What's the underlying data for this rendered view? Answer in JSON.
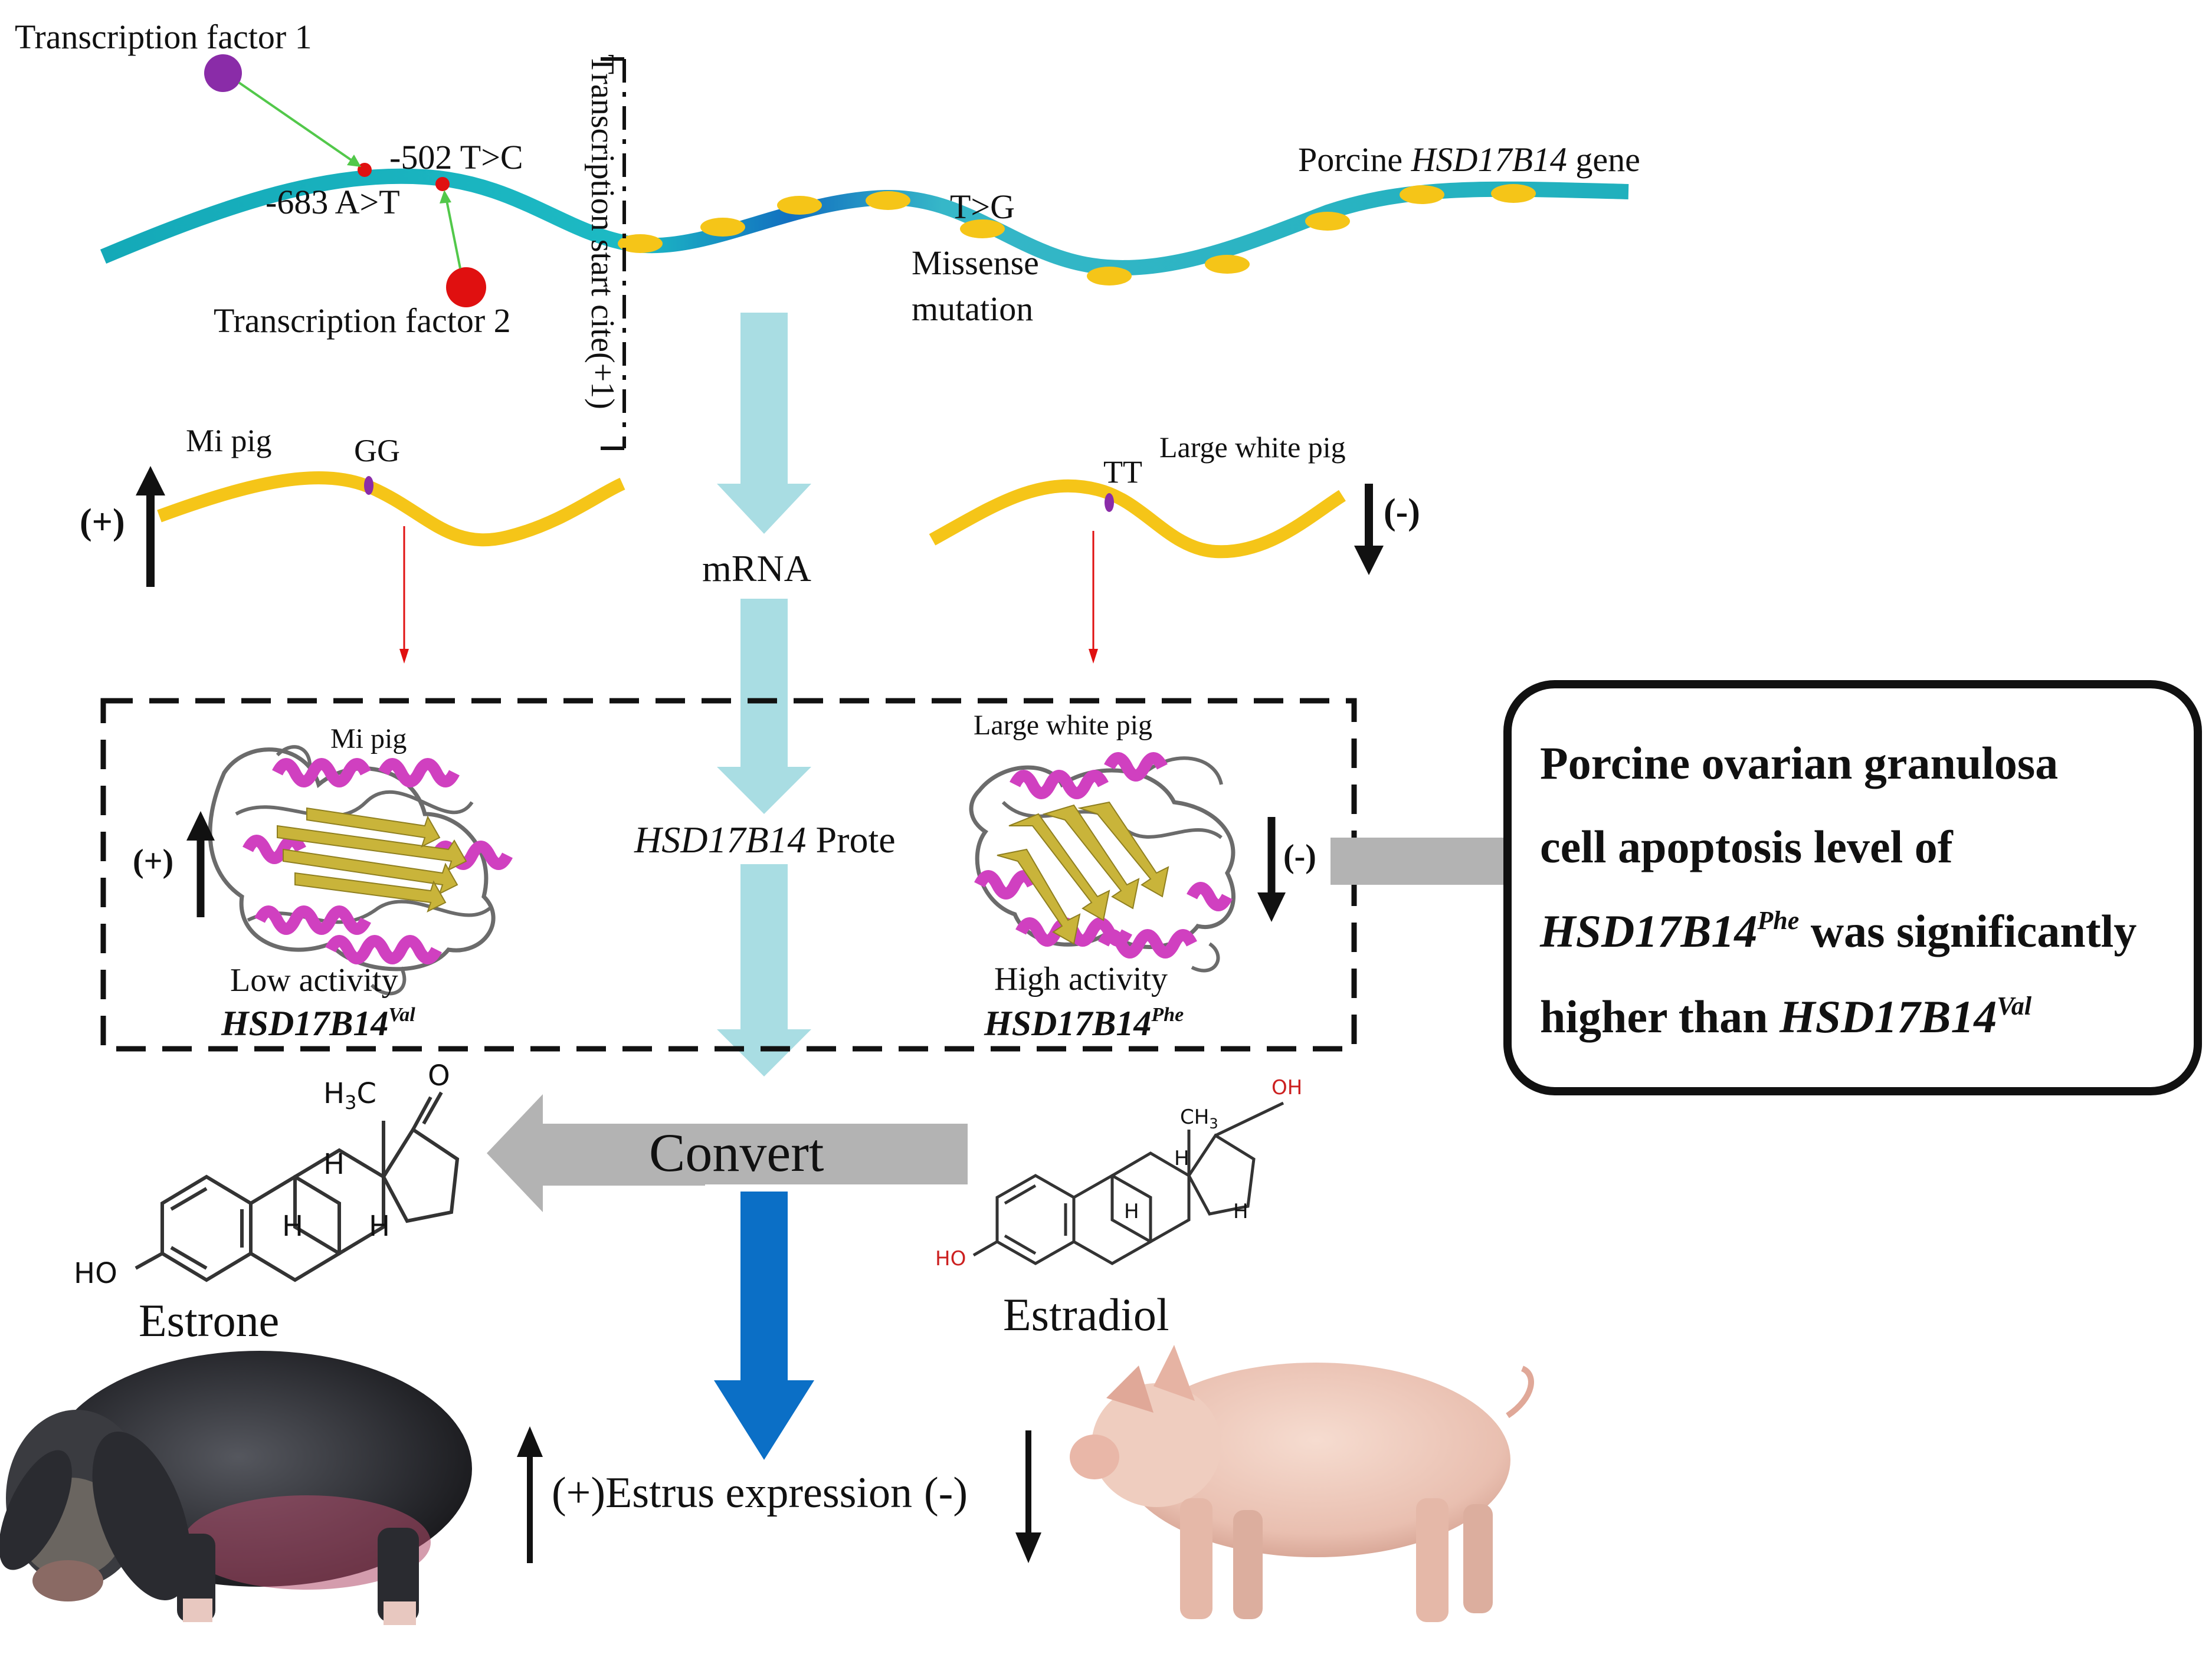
{
  "gene": {
    "tf1_label": "Transcription factor 1",
    "tf2_label": "Transcription factor 2",
    "snp_502": "-502 T>C",
    "snp_683": "-683 A>T",
    "tss_label": "Transcription start cite(+1)",
    "gene_prefix": "Porcine ",
    "gene_name": "HSD17B14",
    "gene_suffix": " gene",
    "snp_tg": "T>G",
    "missense_line1": "Missense",
    "missense_line2": "mutation"
  },
  "mrna": {
    "label": "mRNA",
    "left_breed": "Mi pig",
    "left_genotype": "GG",
    "left_sign": "(+)",
    "right_breed": "Large white pig",
    "right_genotype": "TT",
    "right_sign": "(-)"
  },
  "protein": {
    "center_gene": "HSD17B14",
    "center_word": " Prote",
    "left_breed": "Mi pig",
    "left_sign": "(+)",
    "left_activity": "Low activity",
    "left_variant": "HSD17B14",
    "left_variant_sup": "Val",
    "right_breed": "Large white pig",
    "right_sign": "(-)",
    "right_activity": "High activity",
    "right_variant": "HSD17B14",
    "right_variant_sup": "Phe"
  },
  "result_box": {
    "line1": "Porcine ovarian granulosa",
    "line2": "cell apoptosis level of",
    "line3_gene": "HSD17B14",
    "line3_sup": "Phe",
    "line3_rest": " was significantly",
    "line4_pre": "higher than ",
    "line4_gene": "HSD17B14",
    "line4_sup": "Val"
  },
  "hormones": {
    "convert_label": "Convert",
    "estrone": "Estrone",
    "estradiol": "Estradiol",
    "estrone_h3c": "H3C",
    "estrone_o": "O",
    "estrone_ho": "HO",
    "estrone_h": "H",
    "estradiol_oh": "OH",
    "estradiol_ch3": "CH3",
    "estradiol_ho": "HO",
    "estradiol_h": "H"
  },
  "estrus": {
    "plus": "(+)",
    "label": "Estrus expression",
    "minus": "(-)"
  },
  "colors": {
    "dna_strand": "#1fb3bf",
    "dna_dark": "#1270c0",
    "exon": "#f5c518",
    "mrna": "#f5c518",
    "light_arrow": "#a9dde3",
    "gray_arrow": "#b3b3b3",
    "blue_arrow": "#0b6fc6",
    "helix": "#d040c0",
    "sheet": "#c9b43a",
    "tf1": "#8a2ca8",
    "tf2": "#e01010"
  }
}
